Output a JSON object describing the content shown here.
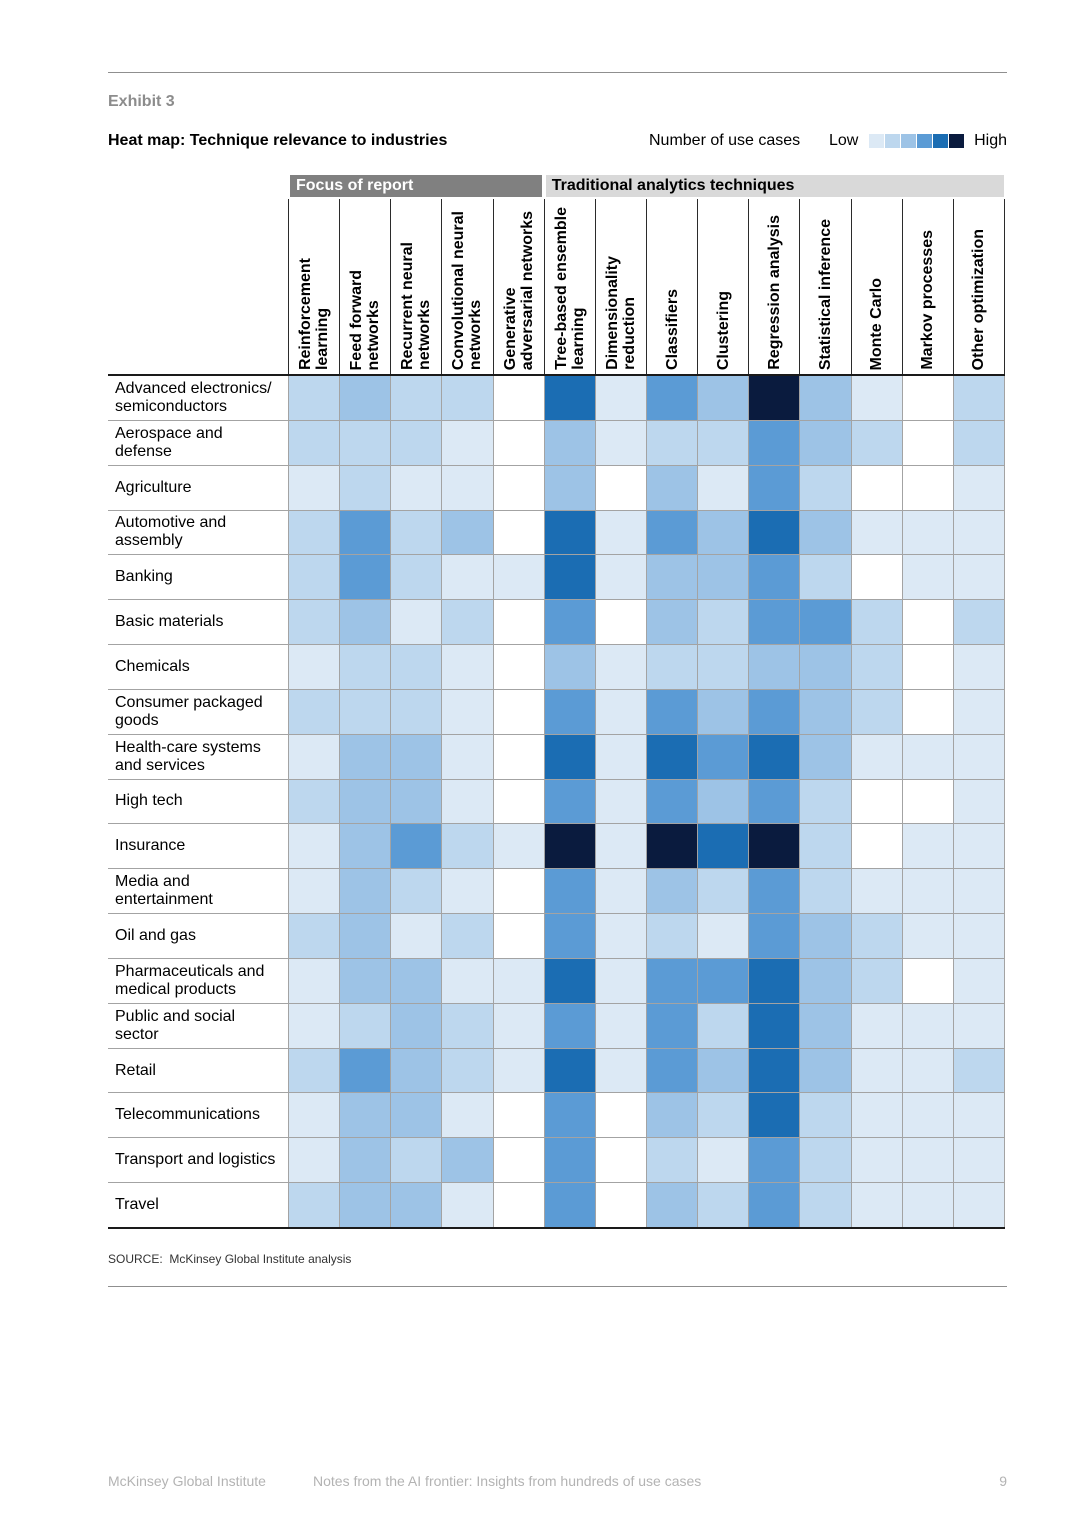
{
  "exhibit": "Exhibit 3",
  "chart_data": {
    "type": "heatmap",
    "title": "Heat map: Technique relevance to industries",
    "legend": {
      "label": "Number of use cases",
      "low": "Low",
      "high": "High",
      "levels": [
        1,
        2,
        3,
        4,
        5,
        6
      ]
    },
    "column_groups": [
      {
        "label": "Focus of report",
        "column_count": 5
      },
      {
        "label": "Traditional analytics techniques",
        "column_count": 9
      }
    ],
    "columns": [
      "Reinforcement\nlearning",
      "Feed forward\nnetworks",
      "Recurrent neural\nnetworks",
      "Convolutional neural\nnetworks",
      "Generative\nadversarial networks",
      "Tree-based ensemble\nlearning",
      "Dimensionality\nreduction",
      "Classifiers",
      "Clustering",
      "Regression analysis",
      "Statistical inference",
      "Monte Carlo",
      "Markov processes",
      "Other optimization"
    ],
    "rows": [
      "Advanced electronics/\nsemiconductors",
      "Aerospace and\ndefense",
      "Agriculture",
      "Automotive and\nassembly",
      "Banking",
      "Basic materials",
      "Chemicals",
      "Consumer packaged\ngoods",
      "Health-care systems\nand services",
      "High tech",
      "Insurance",
      "Media and\nentertainment",
      "Oil and gas",
      "Pharmaceuticals and\nmedical products",
      "Public and social\nsector",
      "Retail",
      "Telecommunications",
      "Transport and logistics",
      "Travel"
    ],
    "values": [
      [
        2,
        3,
        2,
        2,
        0,
        5,
        1,
        4,
        3,
        6,
        3,
        1,
        0,
        2
      ],
      [
        2,
        2,
        2,
        1,
        0,
        3,
        1,
        2,
        2,
        4,
        3,
        2,
        0,
        2
      ],
      [
        1,
        2,
        1,
        1,
        0,
        3,
        0,
        3,
        1,
        4,
        2,
        0,
        0,
        1
      ],
      [
        2,
        4,
        2,
        3,
        0,
        5,
        1,
        4,
        3,
        5,
        3,
        1,
        1,
        1
      ],
      [
        2,
        4,
        2,
        1,
        1,
        5,
        1,
        3,
        3,
        4,
        2,
        0,
        1,
        1
      ],
      [
        2,
        3,
        1,
        2,
        0,
        4,
        0,
        3,
        2,
        4,
        4,
        2,
        0,
        2
      ],
      [
        1,
        2,
        2,
        1,
        0,
        3,
        1,
        2,
        2,
        3,
        3,
        2,
        0,
        1
      ],
      [
        2,
        2,
        2,
        1,
        0,
        4,
        1,
        4,
        3,
        4,
        3,
        2,
        0,
        1
      ],
      [
        1,
        3,
        3,
        1,
        0,
        5,
        1,
        5,
        4,
        5,
        3,
        1,
        1,
        1
      ],
      [
        2,
        3,
        3,
        1,
        0,
        4,
        1,
        4,
        3,
        4,
        2,
        0,
        0,
        1
      ],
      [
        1,
        3,
        4,
        2,
        1,
        6,
        1,
        6,
        5,
        6,
        2,
        0,
        1,
        1
      ],
      [
        1,
        3,
        2,
        1,
        0,
        4,
        1,
        3,
        2,
        4,
        2,
        1,
        1,
        1
      ],
      [
        2,
        3,
        1,
        2,
        0,
        4,
        1,
        2,
        1,
        4,
        3,
        2,
        1,
        1
      ],
      [
        1,
        3,
        3,
        1,
        1,
        5,
        1,
        4,
        4,
        5,
        3,
        2,
        0,
        1
      ],
      [
        1,
        2,
        3,
        2,
        1,
        4,
        1,
        4,
        2,
        5,
        3,
        1,
        1,
        1
      ],
      [
        2,
        4,
        3,
        2,
        1,
        5,
        1,
        4,
        3,
        5,
        3,
        1,
        1,
        2
      ],
      [
        1,
        3,
        3,
        1,
        0,
        4,
        0,
        3,
        2,
        5,
        2,
        1,
        1,
        1
      ],
      [
        1,
        3,
        2,
        3,
        0,
        4,
        0,
        2,
        1,
        4,
        2,
        1,
        1,
        1
      ],
      [
        2,
        3,
        3,
        1,
        0,
        4,
        0,
        3,
        2,
        4,
        2,
        1,
        1,
        1
      ]
    ],
    "level_colors": [
      "#ffffff",
      "#dce9f5",
      "#bdd7ee",
      "#9dc3e6",
      "#5b9bd5",
      "#1b6db3",
      "#0a1b3e"
    ]
  },
  "source": "SOURCE:  McKinsey Global Institute analysis",
  "footer": {
    "publisher": "McKinsey Global Institute",
    "report_title": "Notes from the AI frontier: Insights from hundreds of use cases",
    "page_number": "9"
  },
  "colors": {
    "focus_band": "#808080",
    "traditional_band": "#d9d9d9",
    "rule": "#8f8f8f"
  }
}
